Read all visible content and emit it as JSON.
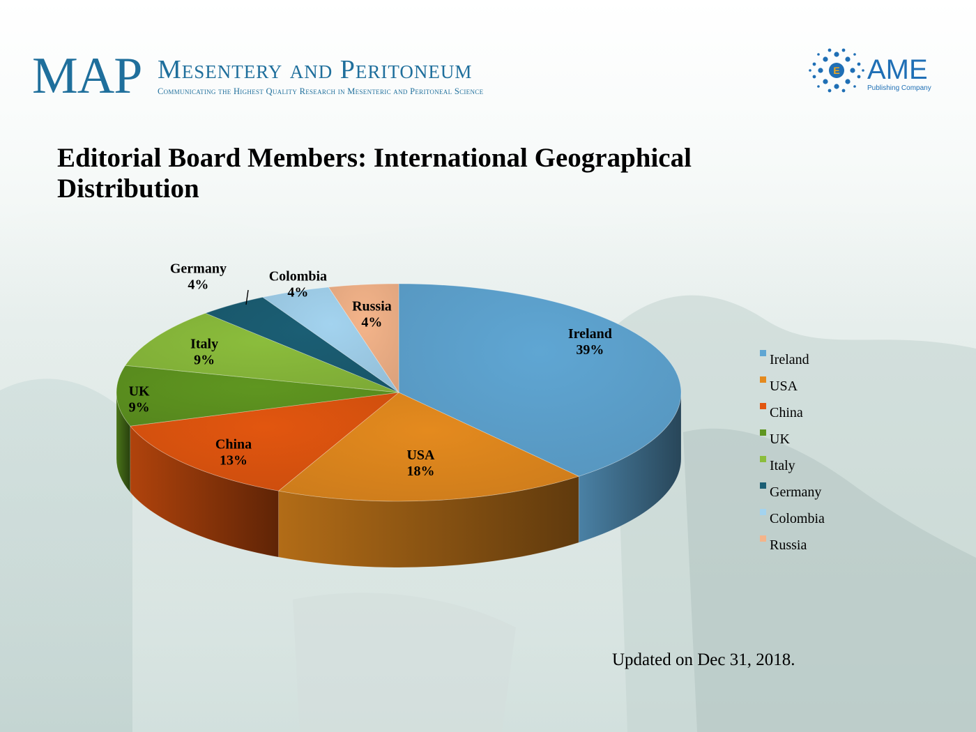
{
  "header": {
    "logo_text": "MAP",
    "journal_title": "Mesentery and Peritoneum",
    "journal_tagline": "Communicating the Highest Quality Research in Mesenteric and Peritoneal Science",
    "publisher_name": "AME",
    "publisher_tagline": "Publishing Company"
  },
  "slide": {
    "title": "Editorial Board Members: International Geographical Distribution",
    "updated_note": "Updated on Dec 31, 2018."
  },
  "colors": {
    "brand_blue": "#1f6f9c",
    "publisher_blue": "#1f6fb5"
  },
  "chart_data": {
    "type": "pie",
    "title": "",
    "legend_position": "right",
    "series": [
      {
        "values": [
          39,
          18,
          13,
          9,
          9,
          4,
          4,
          4
        ],
        "categories": [
          "Ireland",
          "USA",
          "China",
          "UK",
          "Italy",
          "Germany",
          "Colombia",
          "Russia"
        ],
        "colors": [
          "#5fa6d3",
          "#e48a1e",
          "#e2560f",
          "#5f9620",
          "#8bbd3c",
          "#1b5e74",
          "#a3d3ef",
          "#f4b48a"
        ],
        "percent_labels": [
          "39%",
          "18%",
          "13%",
          "9%",
          "9%",
          "4%",
          "4%",
          "4%"
        ]
      }
    ]
  }
}
